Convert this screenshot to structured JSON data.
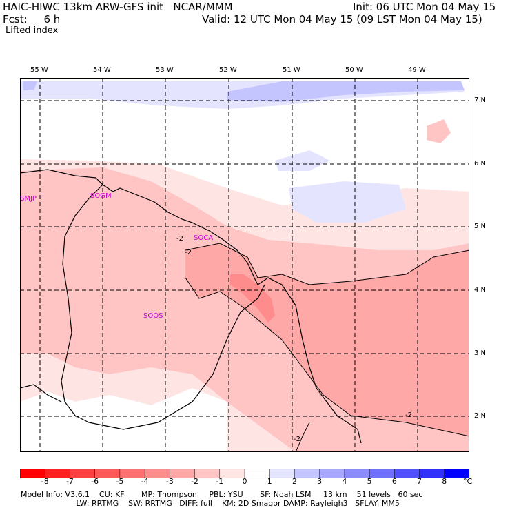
{
  "header": {
    "line1_left": "HAIC-HIWC 13km ARW-GFS init   NCAR/MMM",
    "line1_right": "Init: 06 UTC Mon 04 May 15",
    "line2_left": "Fcst:     6 h",
    "line2_right": "Valid: 12 UTC Mon 04 May 15 (09 LST Mon 04 May 15)",
    "field": "Lifted index"
  },
  "axes": {
    "lon_labels": [
      "55 W",
      "54 W",
      "53 W",
      "52 W",
      "51 W",
      "50 W",
      "49 W"
    ],
    "lat_labels": [
      "7 N",
      "6 N",
      "5 N",
      "4 N",
      "3 N",
      "2 N"
    ]
  },
  "stations": [
    "SMJP",
    "SOGM",
    "SOCA",
    "SOOS"
  ],
  "contour_labels": [
    "-2",
    "-2",
    "-2",
    "-2"
  ],
  "colorbar": {
    "ticks": [
      "-8",
      "-7",
      "-6",
      "-5",
      "-4",
      "-3",
      "-2",
      "-1",
      "0",
      "1",
      "2",
      "3",
      "4",
      "5",
      "6",
      "7",
      "8"
    ],
    "unit": "°C",
    "colors": [
      "#ff0000",
      "#ff2020",
      "#ff4040",
      "#ff5858",
      "#ff7070",
      "#ff8c8c",
      "#ffa8a8",
      "#ffc4c4",
      "#ffe4e4",
      "#ffffff",
      "#e4e4ff",
      "#c4c4ff",
      "#a8a8ff",
      "#8c8cff",
      "#7070ff",
      "#5050ff",
      "#3030ff",
      "#0000ff"
    ]
  },
  "model_info": {
    "line1": "Model Info: V3.6.1    CU: KF       MP: Thompson     PBL: YSU       SF: Noah LSM     13 km    51 levels   60 sec",
    "line2": "                       LW: RRTMG    SW: RRTMG   DIFF: full    KM: 2D Smagor DAMP: Rayleigh3   SFLAY: MM5"
  }
}
